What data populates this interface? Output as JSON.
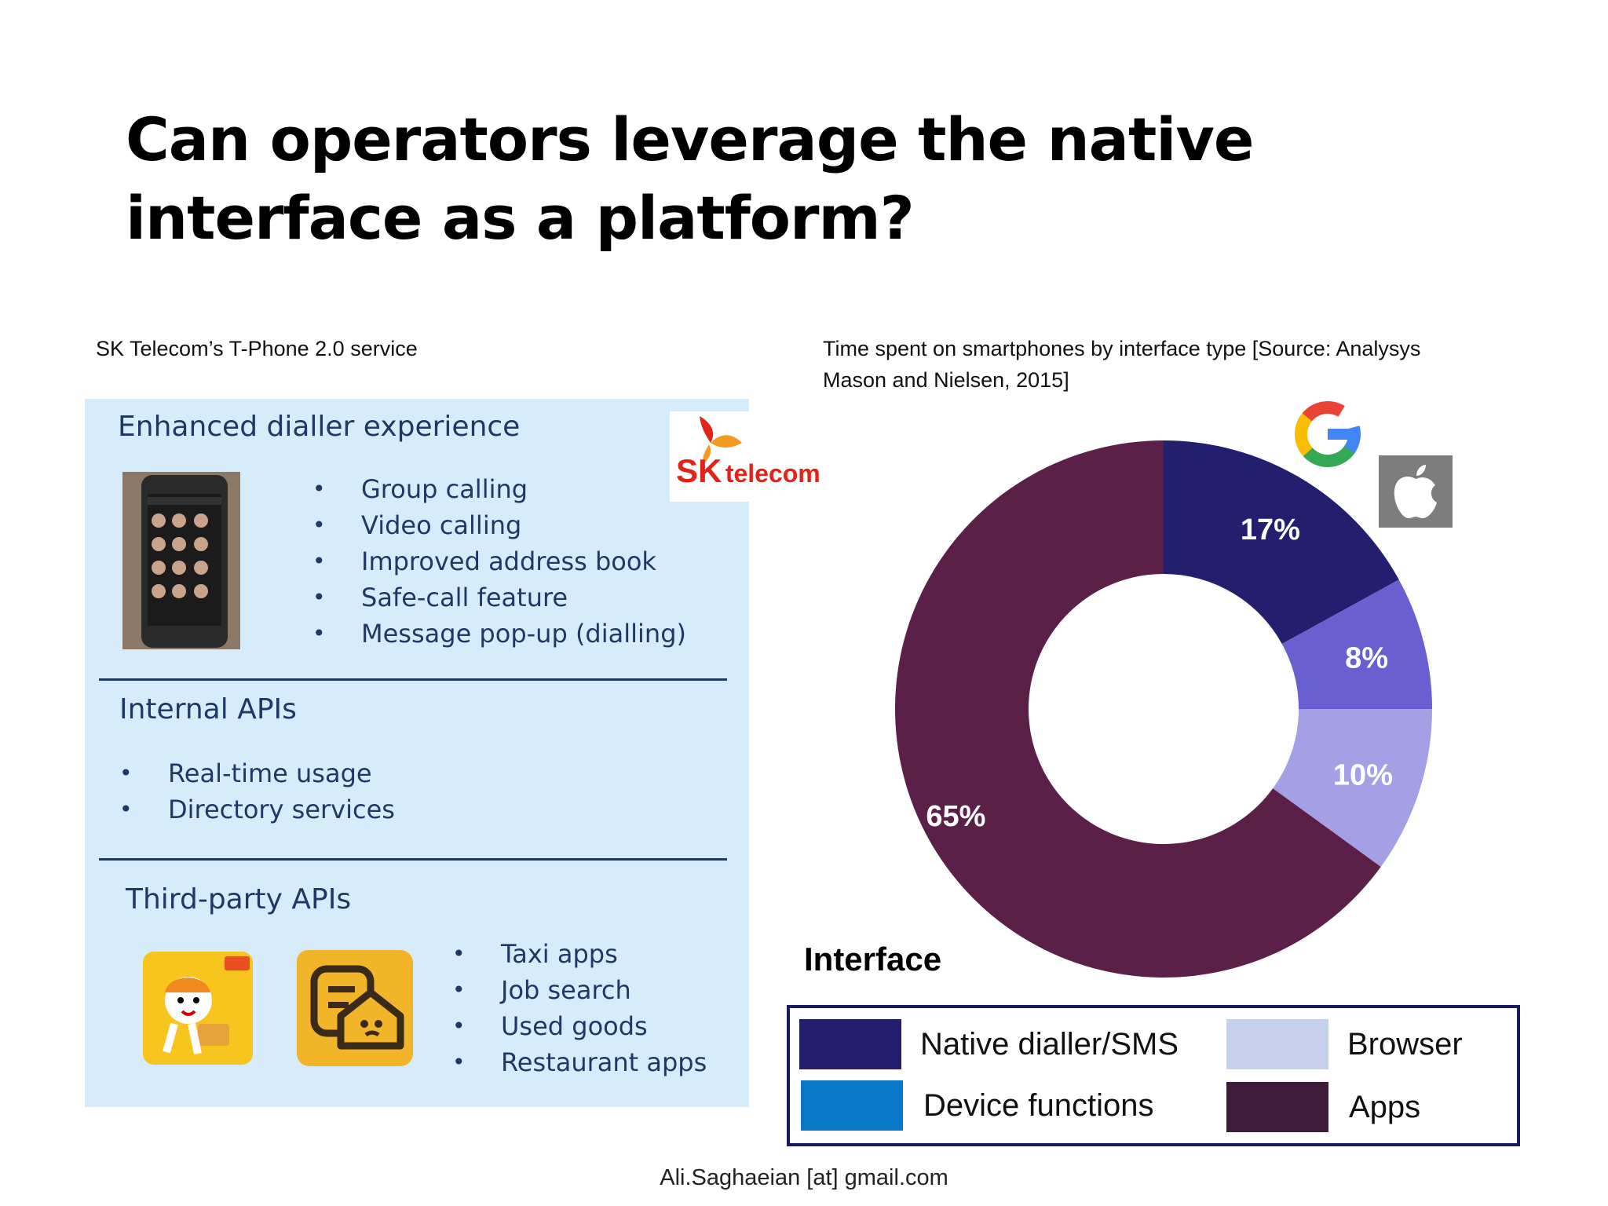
{
  "title": "Can operators leverage the native interface as a platform?",
  "left": {
    "caption": "SK Telecom’s T-Phone 2.0 service",
    "logo": {
      "brand": "SK",
      "suffix": "telecom"
    },
    "sections": [
      {
        "heading": "Enhanced dialler experience",
        "items": [
          "Group calling",
          "Video calling",
          "Improved address book",
          "Safe-call feature",
          "Message pop-up (dialling)"
        ]
      },
      {
        "heading": "Internal APIs",
        "items": [
          "Real-time usage",
          "Directory services"
        ]
      },
      {
        "heading": "Third-party APIs",
        "items": [
          "Taxi apps",
          "Job search",
          "Used goods",
          "Restaurant apps"
        ]
      }
    ],
    "icons": [
      "phone-screenshot-image",
      "taxi-app-icon",
      "house-app-icon"
    ]
  },
  "right": {
    "caption": "Time spent on smartphones by interface type [Source: Analysys Mason and Nielsen, 2015]",
    "icons": [
      "google-logo-icon",
      "apple-logo-icon"
    ]
  },
  "chart_data": {
    "type": "pie",
    "donut": true,
    "categories": [
      "Native dialler/SMS",
      "Device functions",
      "Browser",
      "Apps"
    ],
    "values": [
      17,
      8,
      10,
      65
    ],
    "labels": [
      "17%",
      "8%",
      "10%",
      "65%"
    ],
    "slice_colors": [
      "#231f6e",
      "#6a5fd1",
      "#a5a0e6",
      "#5a2048"
    ],
    "legend": {
      "title": "Interface",
      "placement": "bottom",
      "entries": [
        {
          "label": "Native dialler/SMS",
          "color": "#231f6e"
        },
        {
          "label": "Browser",
          "color": "#c5d1ec"
        },
        {
          "label": "Device functions",
          "color": "#0a78c8"
        },
        {
          "label": "Apps",
          "color": "#3e1c3a"
        }
      ]
    }
  },
  "footer": "Ali.Saghaeian [at] gmail.com"
}
